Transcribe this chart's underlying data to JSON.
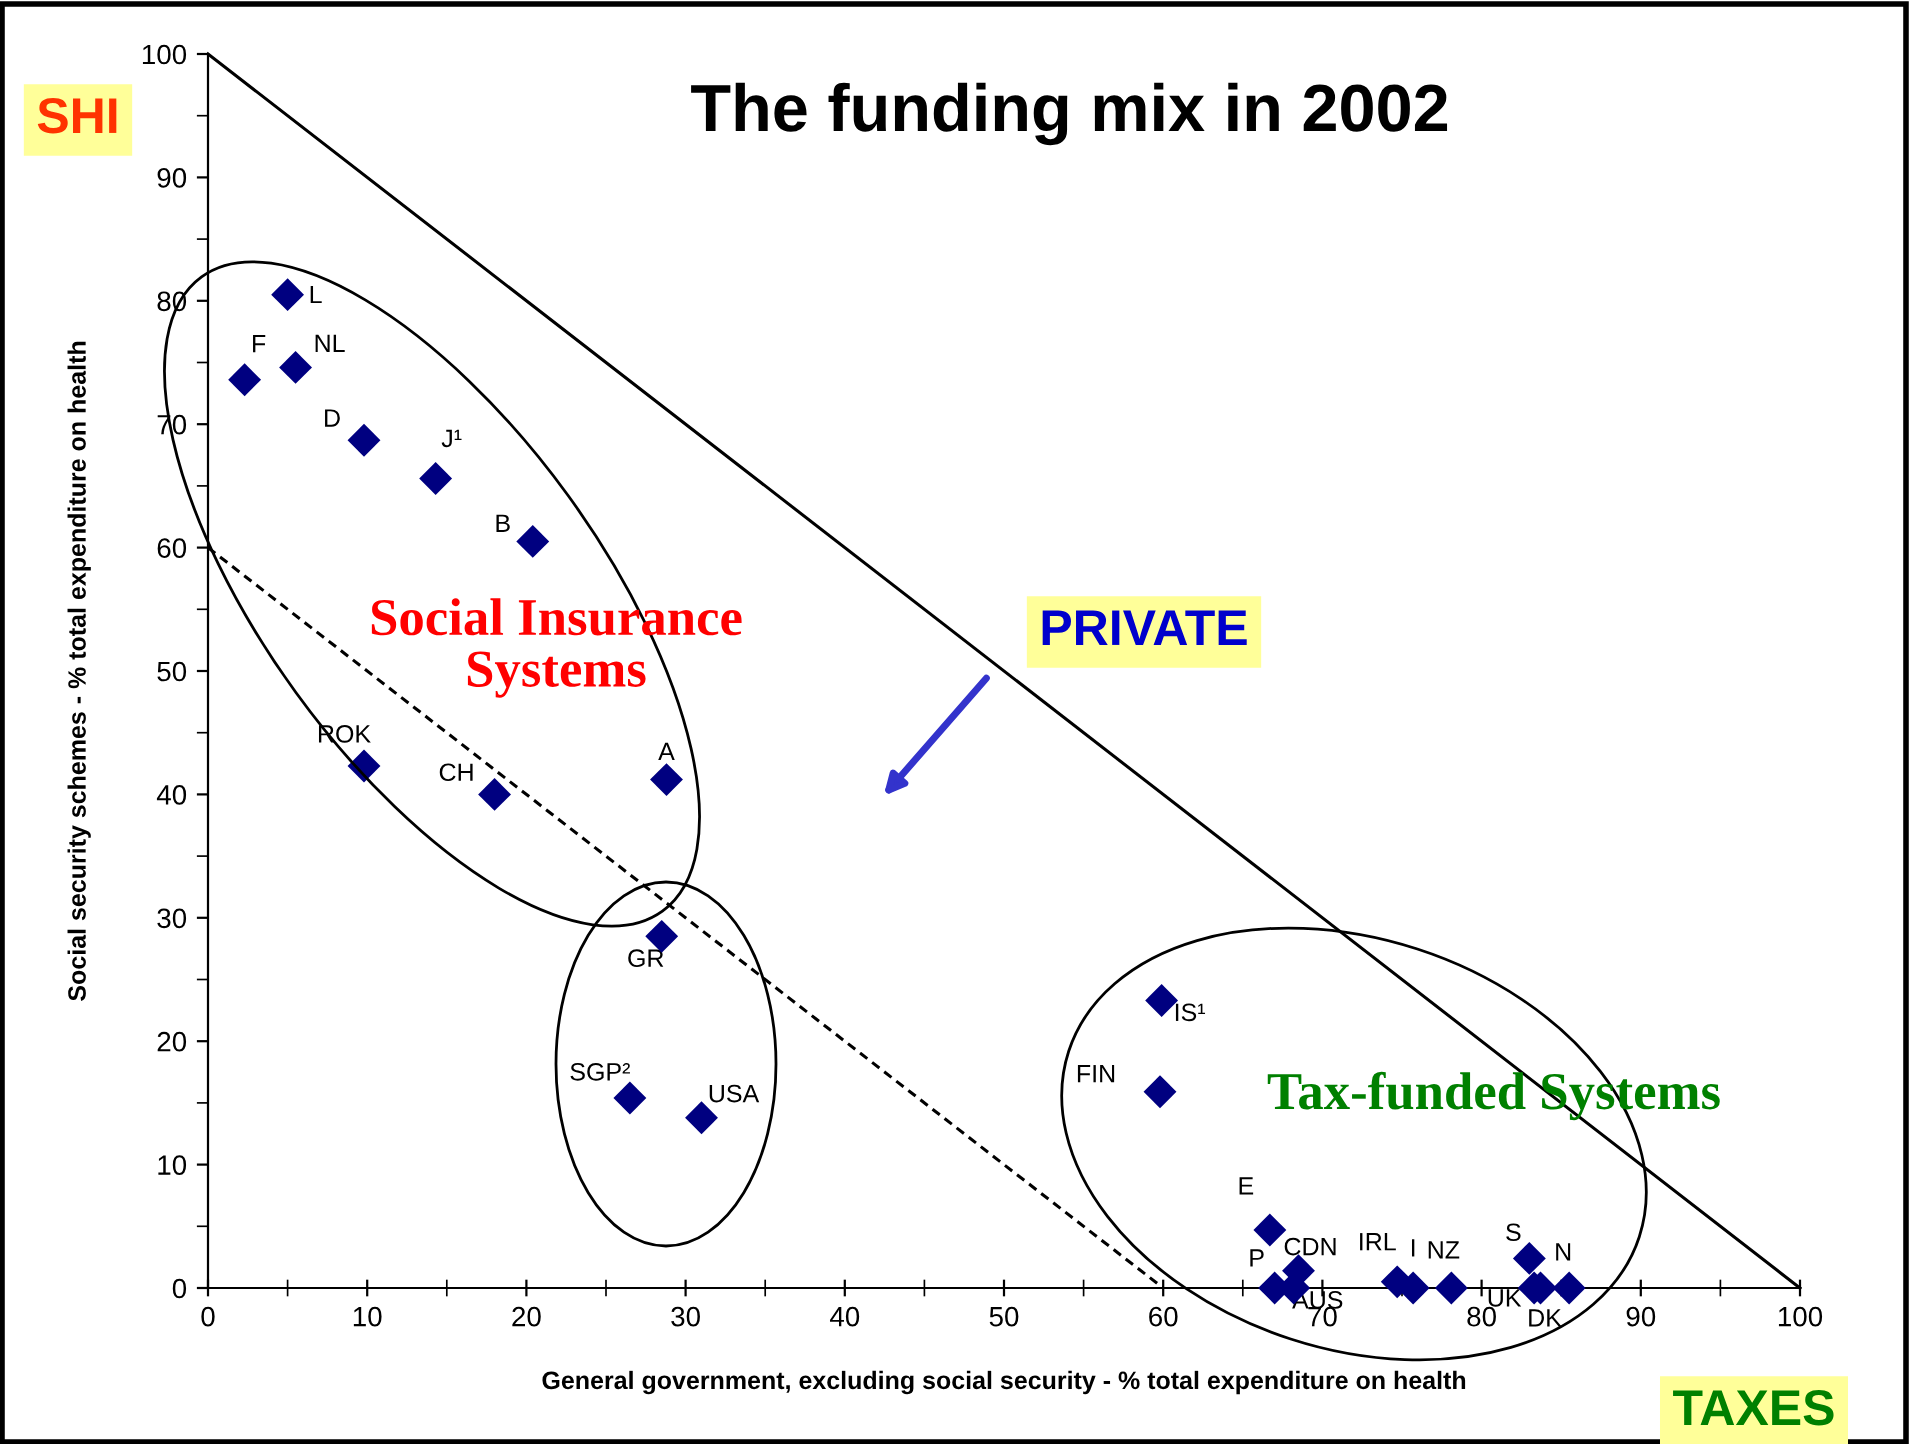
{
  "chart_data": {
    "type": "scatter",
    "title": "The funding mix in 2002",
    "xlabel": "General government, excluding social security - % total expenditure on health",
    "ylabel": "Social security schemes - % total expenditure on health",
    "xlim": [
      0,
      100
    ],
    "ylim": [
      0,
      100
    ],
    "xticks": [
      0,
      10,
      20,
      30,
      40,
      50,
      60,
      70,
      80,
      90,
      100
    ],
    "yticks": [
      0,
      10,
      20,
      30,
      40,
      50,
      60,
      70,
      80,
      90,
      100
    ],
    "grid": false,
    "legend": false,
    "marker": "diamond",
    "annotations": [
      "SHI",
      "PRIVATE",
      "TAXES",
      "Social Insurance\nSystems",
      "Tax-funded Systems"
    ],
    "series": [
      {
        "type": "line",
        "x": [
          0,
          100
        ],
        "values": [
          100,
          0
        ],
        "color": "#000000",
        "line_style": "solid",
        "marker": "none"
      },
      {
        "type": "line",
        "x": [
          0,
          60
        ],
        "values": [
          60,
          0
        ],
        "color": "#000000",
        "line_style": "dashed",
        "marker": "none"
      },
      {
        "name": "L",
        "color": "#000080",
        "x": [
          5.0
        ],
        "values": [
          80.5
        ]
      },
      {
        "name": "F",
        "color": "#000080",
        "x": [
          2.3
        ],
        "values": [
          73.6
        ]
      },
      {
        "name": "NL",
        "color": "#000080",
        "x": [
          5.5
        ],
        "values": [
          74.6
        ]
      },
      {
        "name": "D",
        "color": "#000080",
        "x": [
          9.8
        ],
        "values": [
          68.7
        ]
      },
      {
        "name": "J¹",
        "color": "#000080",
        "x": [
          14.3
        ],
        "values": [
          65.6
        ]
      },
      {
        "name": "B",
        "color": "#000080",
        "x": [
          20.4
        ],
        "values": [
          60.5
        ]
      },
      {
        "name": "ROK",
        "color": "#000080",
        "x": [
          9.8
        ],
        "values": [
          42.3
        ]
      },
      {
        "name": "CH",
        "color": "#000080",
        "x": [
          18.0
        ],
        "values": [
          40.0
        ]
      },
      {
        "name": "A",
        "color": "#000080",
        "x": [
          28.8
        ],
        "values": [
          41.2
        ]
      },
      {
        "name": "GR",
        "color": "#000080",
        "x": [
          28.5
        ],
        "values": [
          28.5
        ]
      },
      {
        "name": "SGP²",
        "color": "#000080",
        "x": [
          26.5
        ],
        "values": [
          15.4
        ]
      },
      {
        "name": "USA",
        "color": "#000080",
        "x": [
          31.0
        ],
        "values": [
          13.8
        ]
      },
      {
        "name": "IS¹",
        "color": "#000080",
        "x": [
          59.9
        ],
        "values": [
          23.3
        ]
      },
      {
        "name": "FIN",
        "color": "#000080",
        "x": [
          59.8
        ],
        "values": [
          15.9
        ]
      },
      {
        "name": "E",
        "color": "#000080",
        "x": [
          66.7
        ],
        "values": [
          4.7
        ]
      },
      {
        "name": "CDN",
        "color": "#000080",
        "x": [
          68.5
        ],
        "values": [
          1.4
        ]
      },
      {
        "name": "P",
        "color": "#000080",
        "x": [
          67.0
        ],
        "values": [
          0
        ]
      },
      {
        "name": "AUS",
        "color": "#000080",
        "x": [
          68.2
        ],
        "values": [
          0
        ]
      },
      {
        "name": "IRL",
        "color": "#000080",
        "x": [
          74.7
        ],
        "values": [
          0.5
        ]
      },
      {
        "name": "I",
        "color": "#000080",
        "x": [
          75.7
        ],
        "values": [
          0
        ]
      },
      {
        "name": "NZ",
        "color": "#000080",
        "x": [
          78.1
        ],
        "values": [
          0
        ]
      },
      {
        "name": "S",
        "color": "#000080",
        "x": [
          83.0
        ],
        "values": [
          2.4
        ]
      },
      {
        "name": "UK",
        "color": "#000080",
        "x": [
          83.3
        ],
        "values": [
          0
        ]
      },
      {
        "name": "DK",
        "color": "#000080",
        "x": [
          83.7
        ],
        "values": [
          0
        ]
      },
      {
        "name": "N",
        "color": "#000080",
        "x": [
          85.5
        ],
        "values": [
          0
        ]
      }
    ]
  }
}
